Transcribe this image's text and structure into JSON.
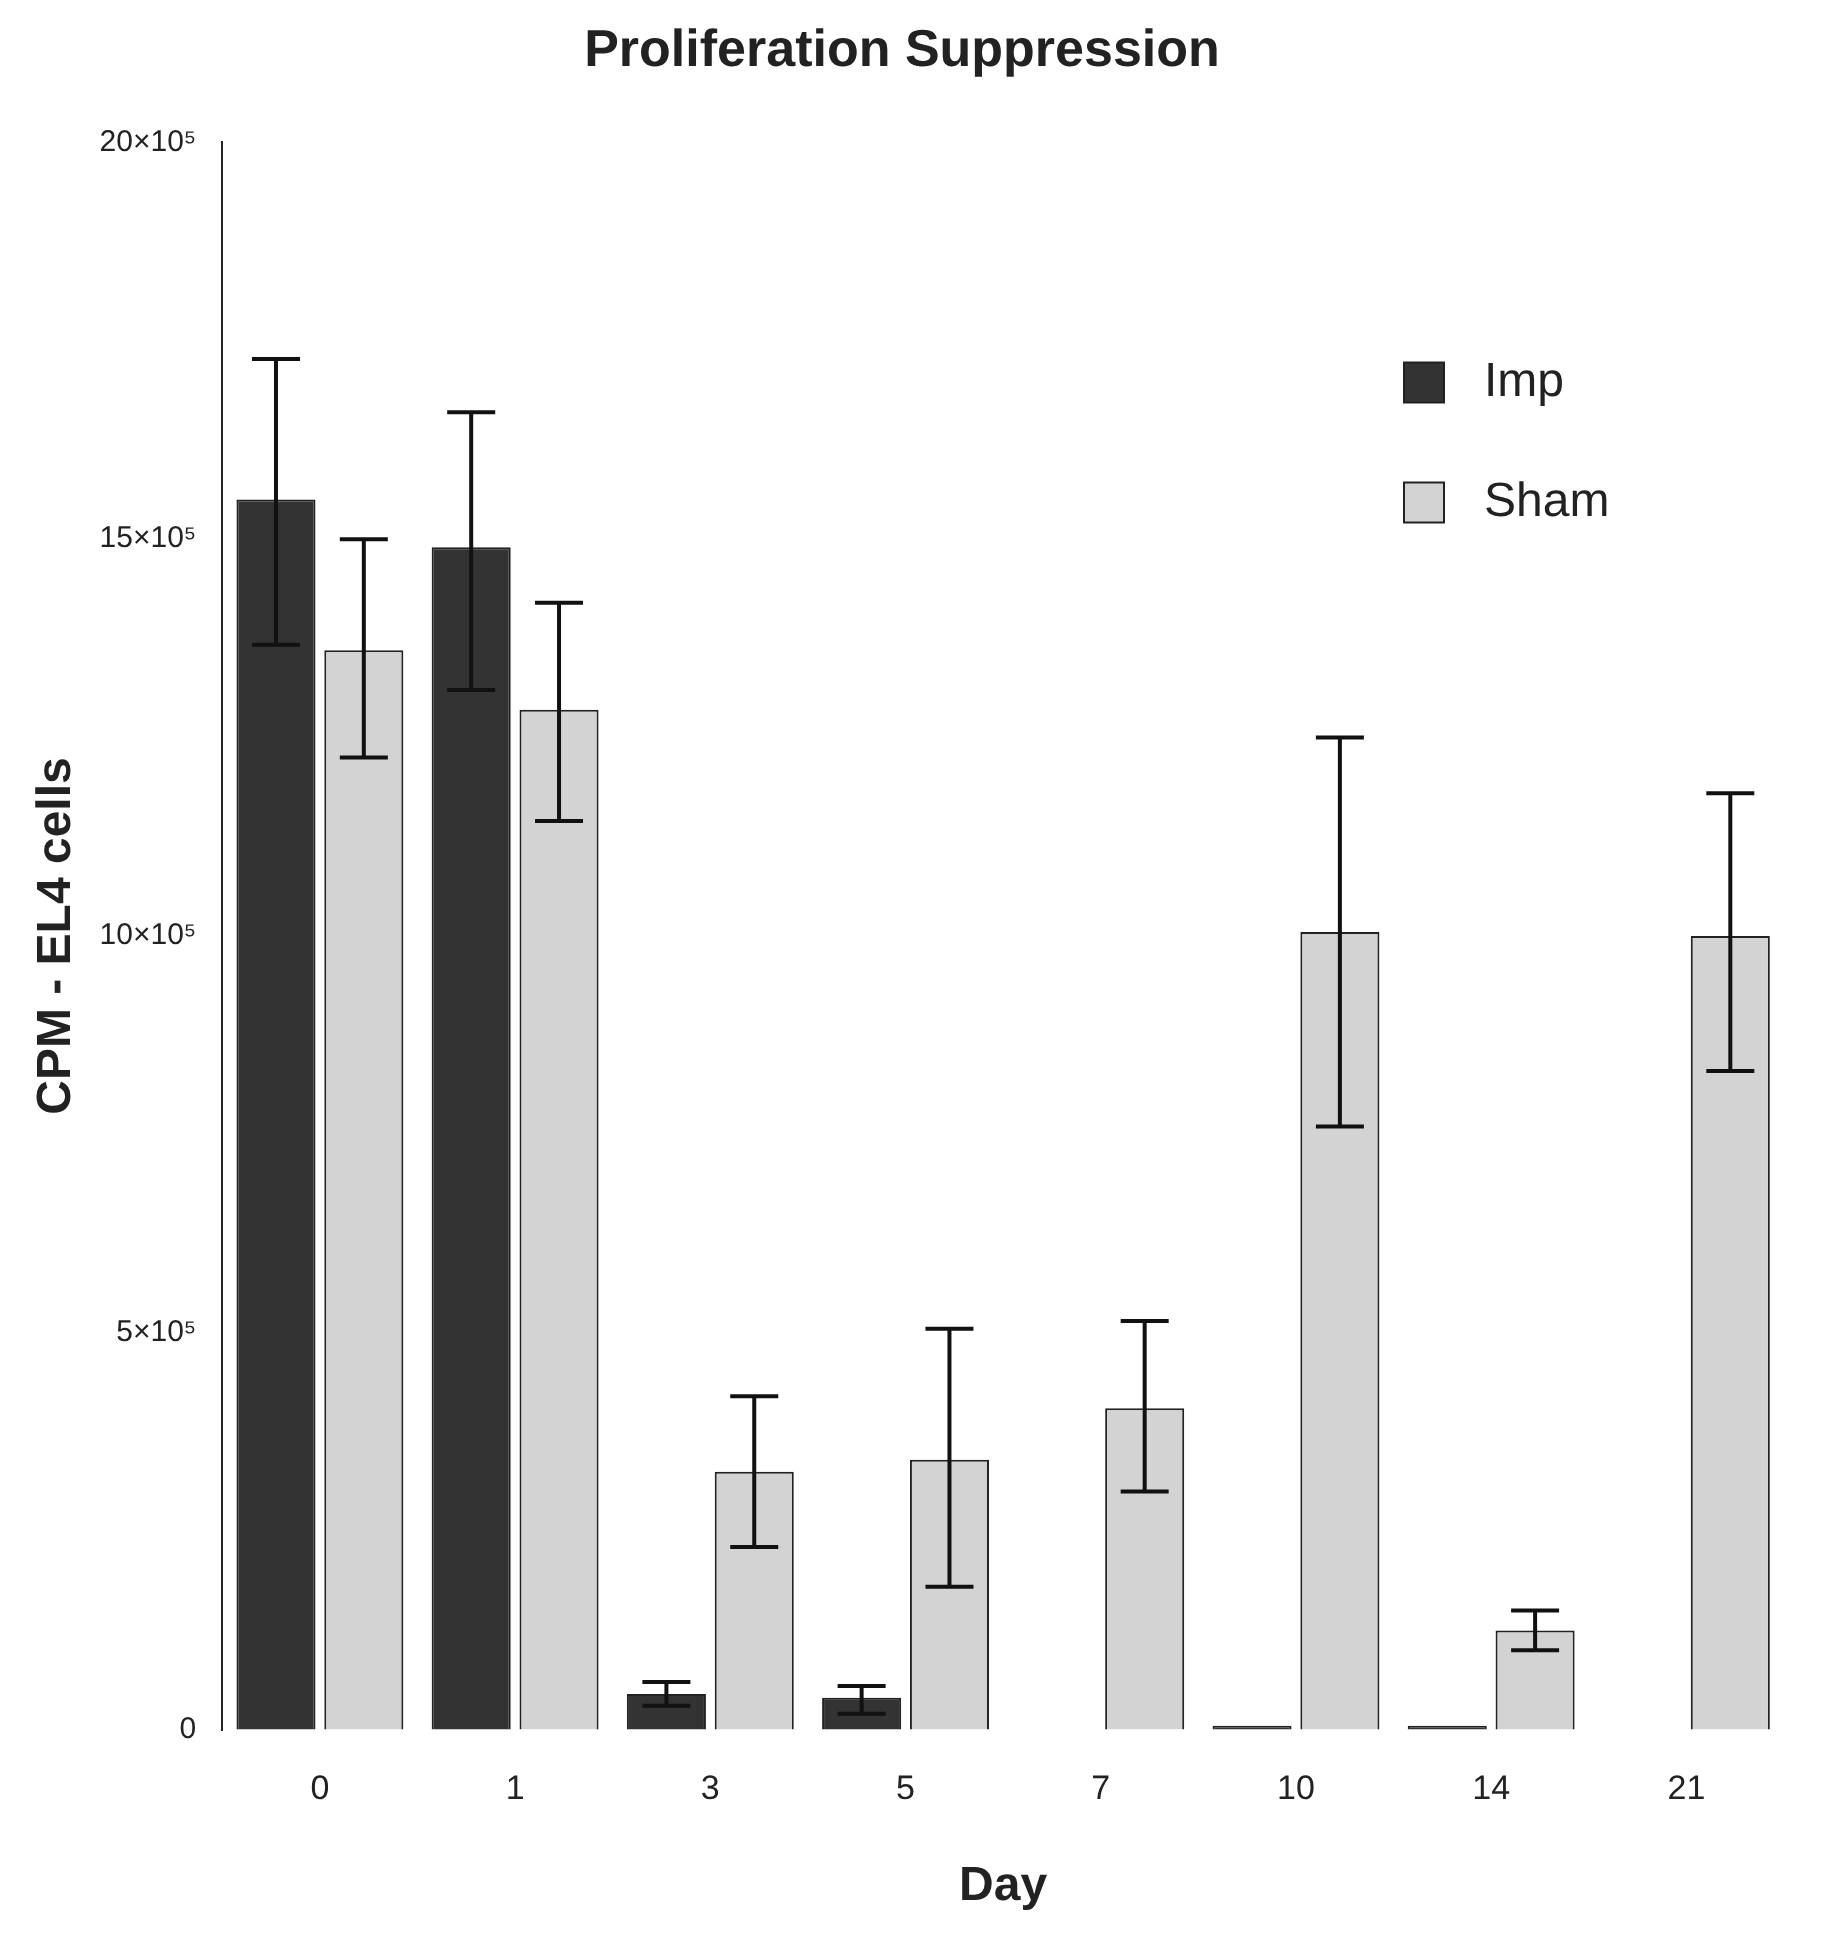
{
  "chart_data": {
    "type": "bar",
    "title": "Proliferation Suppression",
    "xlabel": "Day",
    "ylabel": "CPM - EL4 cells",
    "categories": [
      "0",
      "1",
      "3",
      "5",
      "7",
      "10",
      "14",
      "21"
    ],
    "series": [
      {
        "name": "Imp",
        "color": "#333333",
        "values": [
          1550000,
          1490000,
          45000,
          40000,
          0,
          5000,
          5000,
          0
        ],
        "errors": [
          [
            1367000,
            1727000
          ],
          [
            1310000,
            1660000
          ],
          [
            30000,
            60000
          ],
          [
            20000,
            55000
          ],
          null,
          null,
          null,
          null
        ]
      },
      {
        "name": "Sham",
        "color": "#d3d3d3",
        "values": [
          1360000,
          1285000,
          325000,
          340000,
          405000,
          1005000,
          125000,
          1000000
        ],
        "errors": [
          [
            1225000,
            1500000
          ],
          [
            1145000,
            1420000
          ],
          [
            230000,
            420000
          ],
          [
            180000,
            505000
          ],
          [
            300000,
            515000
          ],
          [
            760000,
            1250000
          ],
          [
            100000,
            150000
          ],
          [
            830000,
            1180000
          ]
        ]
      }
    ],
    "ylim": [
      0,
      2000000
    ],
    "yticks": [
      {
        "value": 0,
        "label": "0"
      },
      {
        "value": 500000,
        "label": "5×10⁵"
      },
      {
        "value": 1000000,
        "label": "10×10⁵"
      },
      {
        "value": 1500000,
        "label": "15×10⁵"
      },
      {
        "value": 2000000,
        "label": "20×10⁵"
      }
    ],
    "grid": false,
    "legend": "top right"
  }
}
